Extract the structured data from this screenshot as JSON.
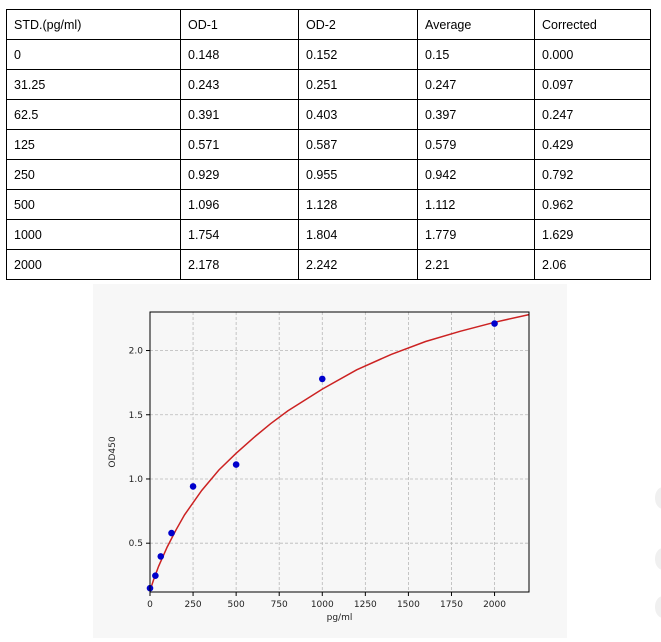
{
  "table": {
    "headers": [
      "STD.(pg/ml)",
      "OD-1",
      "OD-2",
      "Average",
      "Corrected"
    ],
    "rows": [
      [
        "0",
        "0.148",
        "0.152",
        "0.15",
        "0.000"
      ],
      [
        "31.25",
        "0.243",
        "0.251",
        "0.247",
        "0.097"
      ],
      [
        "62.5",
        "0.391",
        "0.403",
        "0.397",
        "0.247"
      ],
      [
        "125",
        "0.571",
        "0.587",
        "0.579",
        "0.429"
      ],
      [
        "250",
        "0.929",
        "0.955",
        "0.942",
        "0.792"
      ],
      [
        "500",
        "1.096",
        "1.128",
        "1.112",
        "0.962"
      ],
      [
        "1000",
        "1.754",
        "1.804",
        "1.779",
        "1.629"
      ],
      [
        "2000",
        "2.178",
        "2.242",
        "2.21",
        "2.06"
      ]
    ]
  },
  "chart_data": {
    "type": "scatter",
    "title": "",
    "xlabel": "pg/ml",
    "ylabel": "OD450",
    "xlim": [
      0,
      2200
    ],
    "ylim": [
      0.12,
      2.3
    ],
    "xticks": [
      0,
      250,
      500,
      750,
      1000,
      1250,
      1500,
      1750,
      2000
    ],
    "yticks": [
      0.5,
      1.0,
      1.5,
      2.0
    ],
    "ytick_labels": [
      "0.5",
      "1.0",
      "1.5",
      "2.0"
    ],
    "grid": true,
    "points": {
      "x": [
        0,
        31.25,
        62.5,
        125,
        250,
        500,
        1000,
        2000
      ],
      "y": [
        0.15,
        0.247,
        0.397,
        0.579,
        0.942,
        1.112,
        1.779,
        2.21
      ],
      "color": "#0000cc"
    },
    "fit_curve": {
      "x": [
        0,
        20,
        50,
        100,
        150,
        200,
        300,
        400,
        500,
        600,
        700,
        800,
        1000,
        1200,
        1400,
        1600,
        1800,
        2000,
        2200
      ],
      "y": [
        0.13,
        0.21,
        0.32,
        0.47,
        0.6,
        0.72,
        0.91,
        1.07,
        1.2,
        1.32,
        1.43,
        1.53,
        1.7,
        1.85,
        1.97,
        2.07,
        2.15,
        2.22,
        2.28
      ],
      "color": "#cc2222"
    }
  }
}
